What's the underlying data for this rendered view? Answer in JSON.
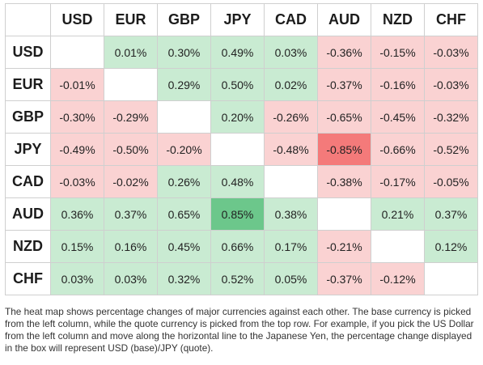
{
  "currencies": [
    "USD",
    "EUR",
    "GBP",
    "JPY",
    "CAD",
    "AUD",
    "NZD",
    "CHF"
  ],
  "rows": [
    {
      "base": "USD",
      "cells": [
        "",
        "0.01%",
        "0.30%",
        "0.49%",
        "0.03%",
        "-0.36%",
        "-0.15%",
        "-0.03%"
      ]
    },
    {
      "base": "EUR",
      "cells": [
        "-0.01%",
        "",
        "0.29%",
        "0.50%",
        "0.02%",
        "-0.37%",
        "-0.16%",
        "-0.03%"
      ]
    },
    {
      "base": "GBP",
      "cells": [
        "-0.30%",
        "-0.29%",
        "",
        "0.20%",
        "-0.26%",
        "-0.65%",
        "-0.45%",
        "-0.32%"
      ]
    },
    {
      "base": "JPY",
      "cells": [
        "-0.49%",
        "-0.50%",
        "-0.20%",
        "",
        "-0.48%",
        "-0.85%",
        "-0.66%",
        "-0.52%"
      ]
    },
    {
      "base": "CAD",
      "cells": [
        "-0.03%",
        "-0.02%",
        "0.26%",
        "0.48%",
        "",
        "-0.38%",
        "-0.17%",
        "-0.05%"
      ]
    },
    {
      "base": "AUD",
      "cells": [
        "0.36%",
        "0.37%",
        "0.65%",
        "0.85%",
        "0.38%",
        "",
        "0.21%",
        "0.37%"
      ]
    },
    {
      "base": "NZD",
      "cells": [
        "0.15%",
        "0.16%",
        "0.45%",
        "0.66%",
        "0.17%",
        "-0.21%",
        "",
        "0.12%"
      ]
    },
    {
      "base": "CHF",
      "cells": [
        "0.03%",
        "0.03%",
        "0.32%",
        "0.52%",
        "0.05%",
        "-0.37%",
        "-0.12%",
        ""
      ]
    }
  ],
  "caption": "The heat map shows percentage changes of major currencies against each other. The base currency is picked from the left column, while the quote currency is picked from the top row. For example, if you pick the US Dollar from the left column and move along the horizontal line to the Japanese Yen, the percentage change displayed in the box will represent USD (base)/JPY (quote).",
  "colors": {
    "positive_light": "#c9ebd2",
    "positive_mid": "#9fdcb1",
    "positive_strong": "#6cc78b",
    "negative_light": "#fad2d2",
    "negative_mid": "#f9b0b0",
    "negative_strong": "#f47a7a"
  }
}
